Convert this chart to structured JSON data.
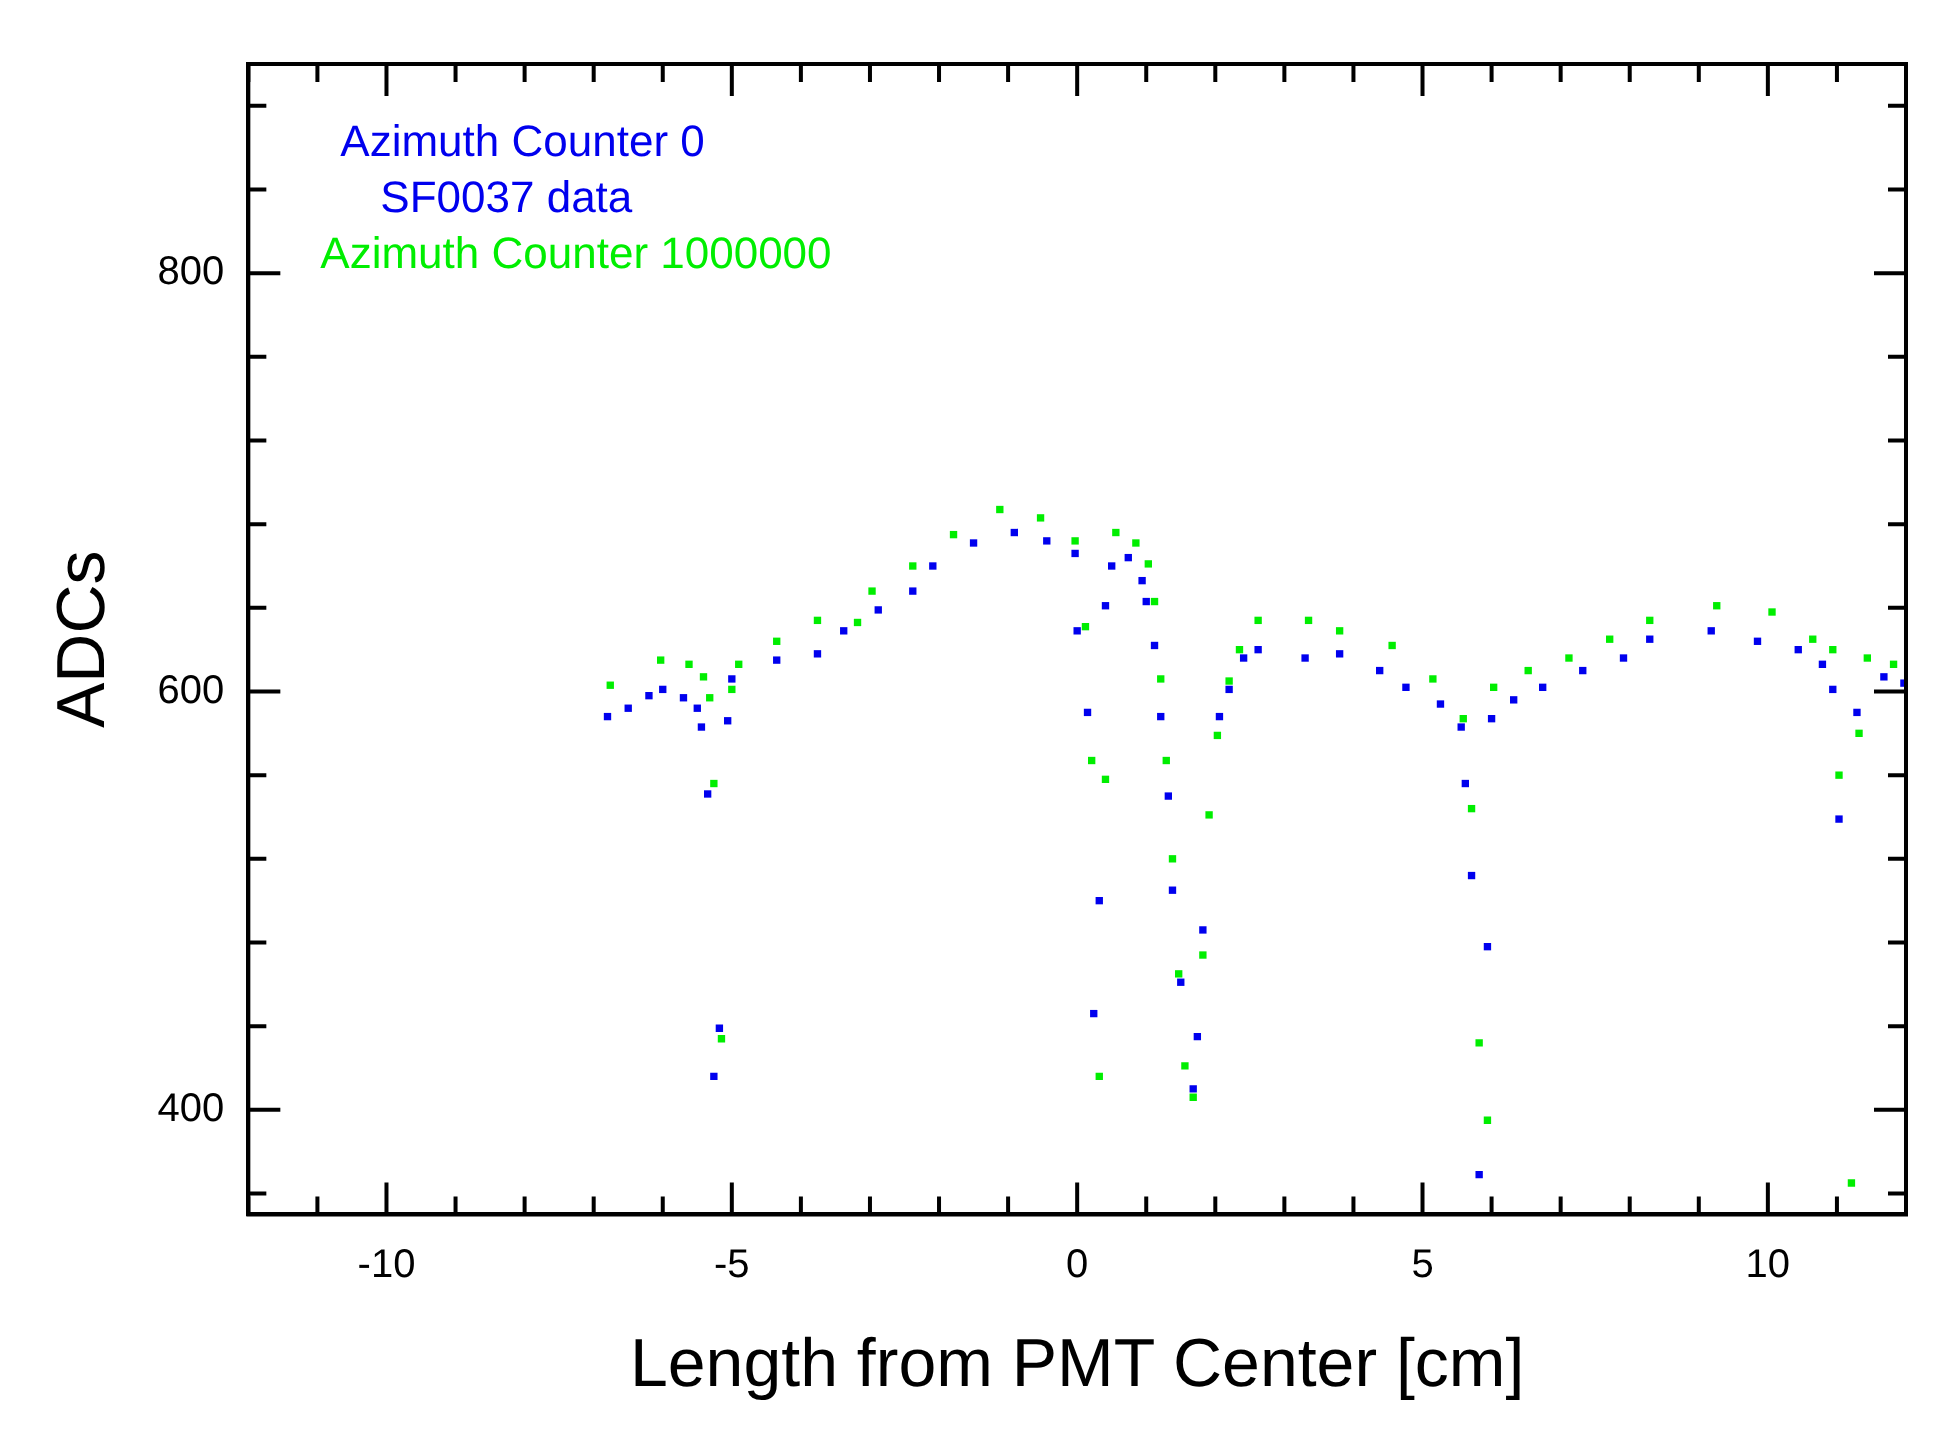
{
  "chart_data": {
    "type": "scatter",
    "xlabel": "Length from PMT Center [cm]",
    "ylabel": "ADCs",
    "xlim": [
      -12,
      12
    ],
    "ylim": [
      350,
      900
    ],
    "xticks": [
      {
        "value": -12,
        "label": null
      },
      {
        "value": -11,
        "label": null
      },
      -10,
      {
        "value": -9,
        "label": null
      },
      {
        "value": -8,
        "label": null
      },
      {
        "value": -7,
        "label": null
      },
      {
        "value": -6,
        "label": null
      },
      -5,
      {
        "value": -4,
        "label": null
      },
      {
        "value": -3,
        "label": null
      },
      {
        "value": -2,
        "label": null
      },
      {
        "value": -1,
        "label": null
      },
      0,
      {
        "value": 1,
        "label": null
      },
      {
        "value": 2,
        "label": null
      },
      {
        "value": 3,
        "label": null
      },
      {
        "value": 4,
        "label": null
      },
      5,
      {
        "value": 6,
        "label": null
      },
      {
        "value": 7,
        "label": null
      },
      {
        "value": 8,
        "label": null
      },
      {
        "value": 9,
        "label": null
      },
      10,
      {
        "value": 11,
        "label": null
      }
    ],
    "yticks": [
      {
        "value": 360,
        "label": null
      },
      400,
      {
        "value": 440,
        "label": null
      },
      {
        "value": 480,
        "label": null
      },
      {
        "value": 520,
        "label": null
      },
      {
        "value": 560,
        "label": null
      },
      600,
      {
        "value": 640,
        "label": null
      },
      {
        "value": 680,
        "label": null
      },
      {
        "value": 720,
        "label": null
      },
      {
        "value": 760,
        "label": null
      },
      800,
      {
        "value": 840,
        "label": null
      },
      {
        "value": 880,
        "label": null
      }
    ],
    "grid": false,
    "legend": "top left",
    "marker": "square",
    "annotations": [
      "SF0037 data"
    ],
    "series": [
      {
        "name": "Azimuth Counter 0",
        "color": "#0000ee",
        "x": [
          -6.8,
          -6.5,
          -6.2,
          -6.0,
          -5.7,
          -5.5,
          -5.44,
          -5.35,
          -5.26,
          -5.18,
          -5.06,
          -5.0,
          -4.35,
          -3.76,
          -3.38,
          -2.88,
          -2.38,
          -2.09,
          -1.5,
          -0.91,
          -0.44,
          -0.03,
          0.0,
          0.15,
          0.24,
          0.32,
          0.41,
          0.5,
          0.74,
          0.94,
          1.0,
          1.12,
          1.21,
          1.32,
          1.38,
          1.5,
          1.68,
          1.74,
          1.82,
          2.06,
          2.2,
          2.41,
          2.62,
          3.3,
          3.8,
          4.38,
          4.76,
          5.26,
          5.56,
          5.62,
          5.71,
          5.82,
          5.94,
          6.0,
          6.32,
          6.74,
          7.32,
          7.91,
          8.29,
          9.18,
          9.85,
          10.44,
          10.79,
          10.94,
          11.03,
          11.29,
          11.68,
          11.97
        ],
        "values": [
          588,
          592,
          598,
          601,
          597,
          592,
          583,
          551,
          416,
          439,
          586,
          606,
          615,
          618,
          629,
          639,
          648,
          660,
          671,
          676,
          672,
          666,
          629,
          590,
          446,
          500,
          641,
          660,
          664,
          653,
          643,
          622,
          588,
          550,
          505,
          461,
          410,
          435,
          486,
          588,
          601,
          616,
          620,
          616,
          618,
          610,
          602,
          594,
          583,
          556,
          512,
          369,
          478,
          587,
          596,
          602,
          610,
          616,
          625,
          629,
          624,
          620,
          613,
          601,
          539,
          590,
          607,
          604
        ]
      },
      {
        "name": "Azimuth Counter 1000000",
        "color": "#00ee00",
        "x": [
          -6.76,
          -6.03,
          -5.62,
          -5.41,
          -5.32,
          -5.26,
          -5.15,
          -5.0,
          -4.9,
          -4.35,
          -3.76,
          -3.18,
          -2.97,
          -2.38,
          -1.79,
          -1.12,
          -0.53,
          -0.03,
          0.12,
          0.21,
          0.32,
          0.41,
          0.56,
          0.85,
          1.03,
          1.12,
          1.21,
          1.29,
          1.38,
          1.47,
          1.56,
          1.68,
          1.82,
          1.91,
          2.03,
          2.2,
          2.35,
          2.62,
          3.35,
          3.8,
          4.56,
          5.15,
          5.59,
          5.71,
          5.82,
          5.94,
          6.03,
          6.53,
          7.12,
          7.71,
          8.29,
          9.26,
          10.06,
          10.65,
          10.94,
          11.03,
          11.21,
          11.32,
          11.44,
          11.82
        ],
        "values": [
          603,
          615,
          613,
          607,
          597,
          556,
          434,
          601,
          613,
          624,
          634,
          633,
          648,
          660,
          675,
          687,
          683,
          672,
          631,
          567,
          416,
          558,
          676,
          671,
          661,
          643,
          606,
          567,
          520,
          465,
          421,
          406,
          474,
          541,
          579,
          605,
          620,
          634,
          634,
          629,
          622,
          606,
          587,
          544,
          432,
          395,
          602,
          610,
          616,
          625,
          634,
          641,
          638,
          625,
          620,
          560,
          365,
          580,
          616,
          613
        ]
      }
    ]
  }
}
